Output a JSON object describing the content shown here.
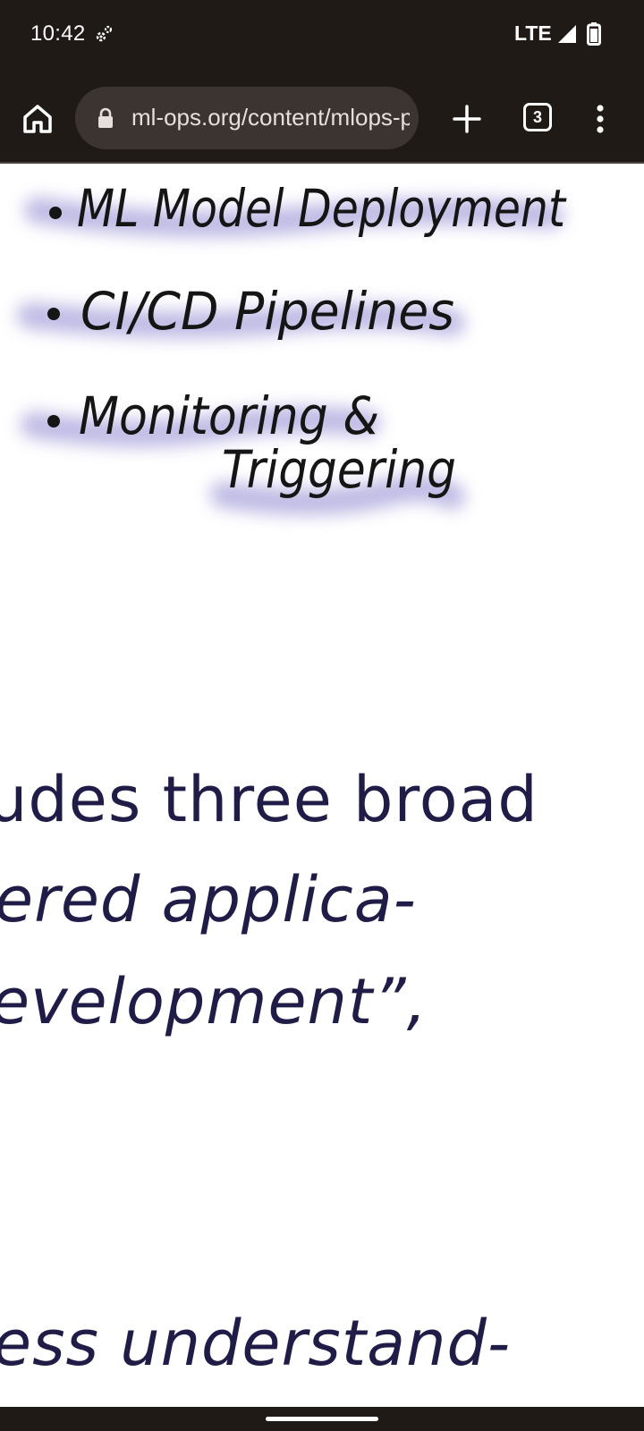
{
  "status_bar": {
    "time": "10:42",
    "network": "LTE",
    "icons": [
      "sync-icon",
      "signal-icon",
      "battery-icon"
    ]
  },
  "browser": {
    "url": "ml-ops.org/content/mlops-principles",
    "tab_count": "3",
    "icons": [
      "home-icon",
      "lock-icon",
      "plus-icon",
      "tab-switcher-icon",
      "overflow-menu-icon"
    ]
  },
  "sketch": {
    "bullets": [
      "ML Model Deployment",
      "CI/CD Pipelines",
      "Monitoring &",
      "Triggering"
    ],
    "highlight_color": "#b4aee0"
  },
  "article": {
    "lines": [
      "udes three broad",
      "ered applica-",
      "evelopment”,",
      "ess understand-"
    ],
    "text_color": "#1f1d47"
  }
}
